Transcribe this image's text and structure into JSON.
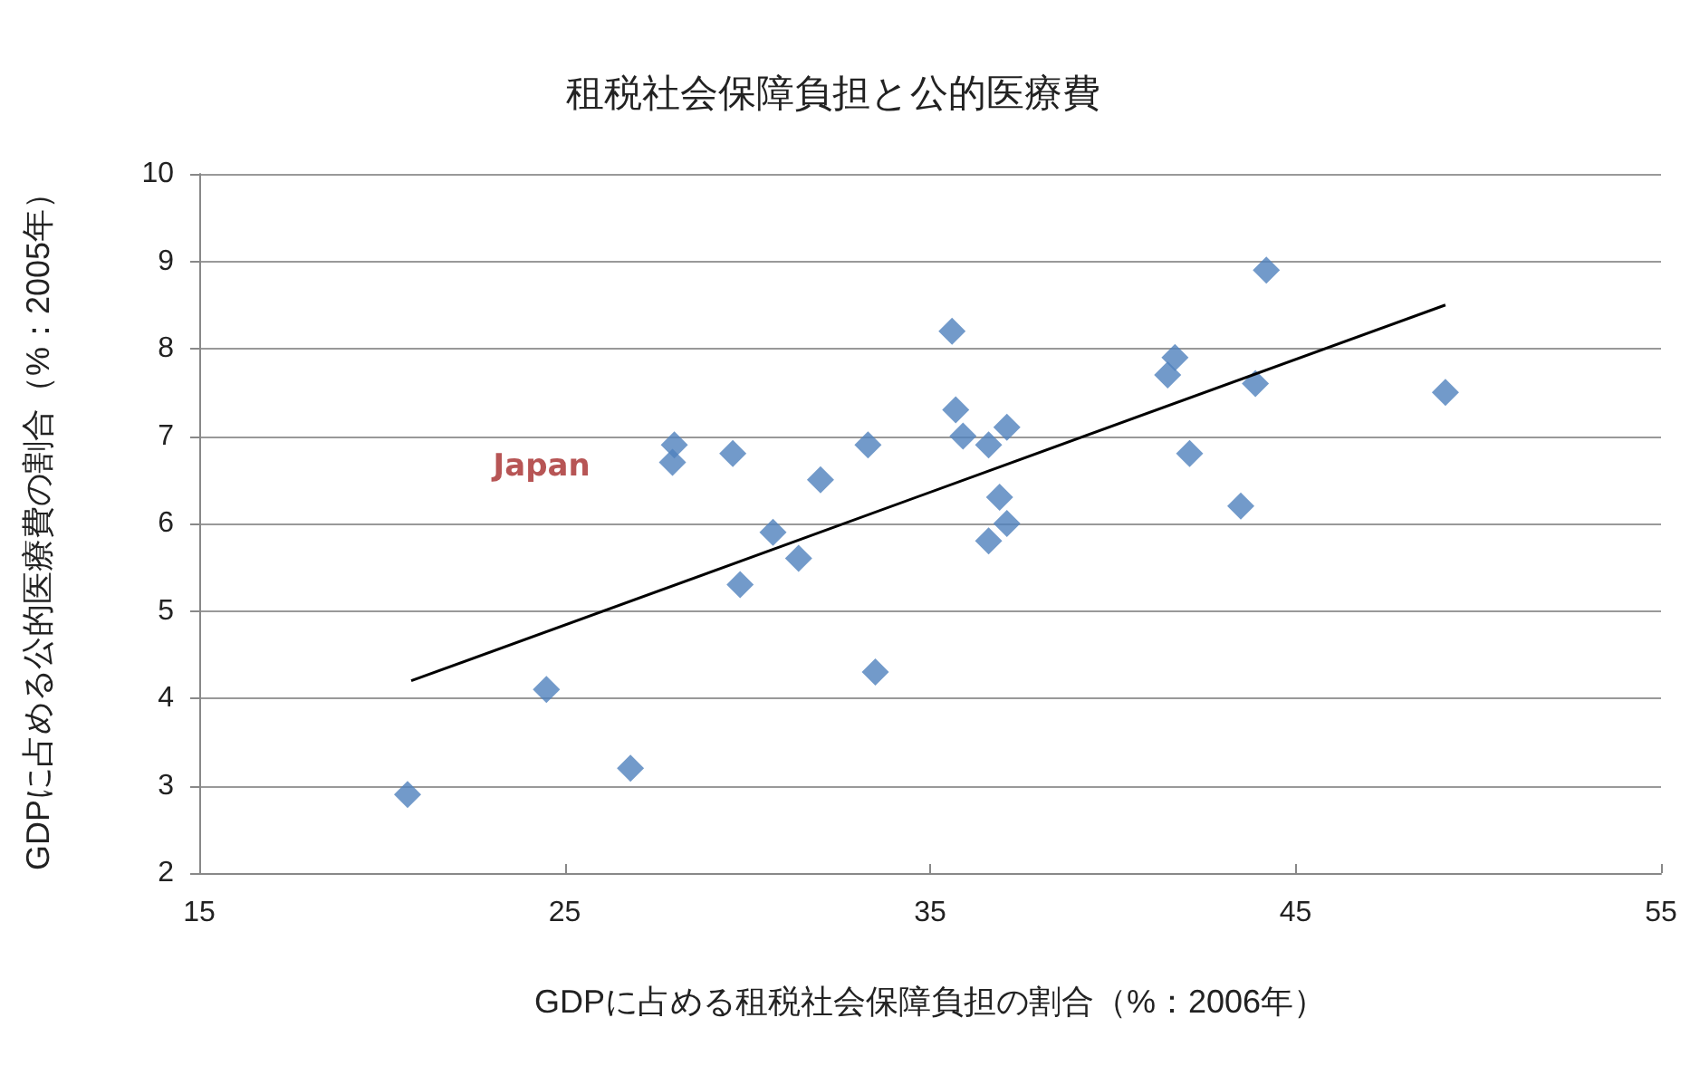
{
  "chart_data": {
    "type": "scatter",
    "title": "租税社会保障負担と公的医療費",
    "xlabel": "GDPに占める租税社会保障負担の割合（%：2006年）",
    "ylabel": "GDPに占める公的医療費の割合（%：2005年）",
    "series": [
      {
        "color": "#4f81bd",
        "marker": "diamond",
        "x": [
          20.7,
          24.5,
          26.8,
          28.0,
          27.95,
          29.6,
          29.8,
          30.7,
          31.4,
          32.0,
          33.3,
          33.5,
          35.6,
          35.7,
          35.9,
          36.6,
          37.1,
          36.6,
          36.9,
          37.1,
          41.5,
          41.7,
          42.1,
          43.5,
          43.9,
          44.2,
          49.1
        ],
        "values": [
          2.9,
          4.1,
          3.2,
          6.9,
          6.7,
          6.8,
          5.3,
          5.9,
          5.6,
          6.5,
          6.9,
          4.3,
          8.2,
          7.3,
          7.0,
          6.9,
          7.1,
          5.8,
          6.3,
          6.0,
          7.7,
          7.9,
          6.8,
          6.2,
          7.6,
          8.9,
          7.5
        ]
      },
      {
        "type": "line",
        "color": "#000000",
        "marker": "none",
        "x": [
          20.8,
          49.1
        ],
        "values": [
          4.2,
          8.5
        ]
      }
    ],
    "annotations": [
      {
        "text": "Japan",
        "x": 28.0,
        "y": 6.7
      }
    ],
    "xlim": [
      15,
      55
    ],
    "xticks": [
      15,
      25,
      35,
      45,
      55
    ],
    "ylim": [
      2,
      10
    ],
    "yticks": [
      2,
      3,
      4,
      5,
      6,
      7,
      8,
      9,
      10
    ],
    "grid": "y"
  }
}
